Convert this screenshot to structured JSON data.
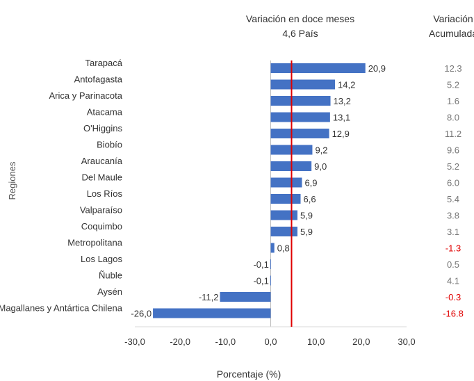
{
  "chart_data": {
    "type": "bar",
    "orientation": "horizontal",
    "title_line1": "Variación en doce meses",
    "title_line2": "4,6 País",
    "reference_value": 4.6,
    "ylabel": "Regiones",
    "xlabel": "Porcentaje (%)",
    "xlim": [
      -30,
      30
    ],
    "xticks": [
      -30,
      -20,
      -10,
      0,
      10,
      20,
      30
    ],
    "xtick_labels": [
      "-30,0",
      "-20,0",
      "-10,0",
      "0,0",
      "10,0",
      "20,0",
      "30,0"
    ],
    "categories": [
      "Tarapacá",
      "Antofagasta",
      "Arica y Parinacota",
      "Atacama",
      "O'Higgins",
      "Biobío",
      "Araucanía",
      "Del Maule",
      "Los Ríos",
      "Valparaíso",
      "Coquimbo",
      "Metropolitana",
      "Los Lagos",
      "Ñuble",
      "Aysén",
      "Magallanes y Antártica Chilena"
    ],
    "values": [
      20.9,
      14.2,
      13.2,
      13.1,
      12.9,
      9.2,
      9.0,
      6.9,
      6.6,
      5.9,
      5.9,
      0.8,
      -0.1,
      -0.1,
      -11.2,
      -26.0
    ],
    "value_labels": [
      "20,9",
      "14,2",
      "13,2",
      "13,1",
      "12,9",
      "9,2",
      "9,0",
      "6,9",
      "6,6",
      "5,9",
      "5,9",
      "0,8",
      "-0,1",
      "-0,1",
      "-11,2",
      "-26,0"
    ],
    "accumulated_header_line1": "Variación",
    "accumulated_header_line2": "Acumulada",
    "accumulated": [
      "12.3",
      "5.2",
      "1.6",
      "8.0",
      "11.2",
      "9.6",
      "5.2",
      "6.0",
      "5.4",
      "3.8",
      "3.1",
      "-1.3",
      "0.5",
      "4.1",
      "-0.3",
      "-16.8"
    ],
    "grid": false,
    "colors": {
      "bar": "#4472C4",
      "reference_line": "#E00000",
      "negative_accumulated": "#E00000",
      "text": "#333333",
      "accumulated_text": "#777777"
    }
  }
}
